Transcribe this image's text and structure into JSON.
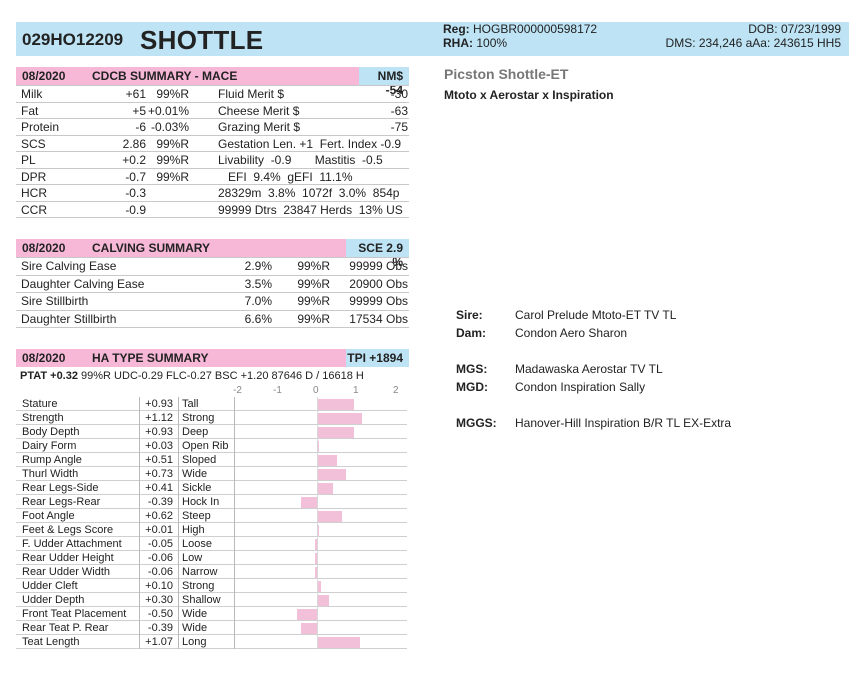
{
  "header": {
    "id": "029HO12209",
    "name": "SHOTTLE",
    "reg_label": "Reg:",
    "reg_value": "HOGBR000000598172",
    "rha_label": "RHA:",
    "rha_value": "100%",
    "dob": "DOB: 07/23/1999",
    "dms": "DMS: 234,246  aAa: 243615  HH5"
  },
  "cdcb": {
    "date": "08/2020",
    "title": "CDCB SUMMARY - MACE",
    "nm": "NM$ -54",
    "rows": [
      {
        "trait": "Milk",
        "v1": "+61",
        "v2": "99%R",
        "m": "Fluid Merit $",
        "mv": "-30"
      },
      {
        "trait": "Fat",
        "v1": "+5",
        "v2": "+0.01%",
        "m": "Cheese Merit $",
        "mv": "-63"
      },
      {
        "trait": "Protein",
        "v1": "-6",
        "v2": "-0.03%",
        "m": "Grazing Merit $",
        "mv": "-75"
      },
      {
        "trait": "SCS",
        "v1": "2.86",
        "v2": "99%R",
        "m": "Gestation Len. +1  Fert. Index -0.9",
        "mv": ""
      },
      {
        "trait": "PL",
        "v1": "+0.2",
        "v2": "99%R",
        "m": "Livability  -0.9       Mastitis  -0.5",
        "mv": ""
      },
      {
        "trait": "DPR",
        "v1": "-0.7",
        "v2": "99%R",
        "m": "   EFI  9.4%  gEFI  11.1%",
        "mv": ""
      },
      {
        "trait": "HCR",
        "v1": "-0.3",
        "v2": "",
        "m": "28329m  3.8%  1072f  3.0%  854p",
        "mv": ""
      },
      {
        "trait": "CCR",
        "v1": "-0.9",
        "v2": "",
        "m": "99999 Dtrs  23847 Herds  13% US",
        "mv": ""
      }
    ]
  },
  "calving": {
    "date": "08/2020",
    "title": "CALVING SUMMARY",
    "sce": "SCE 2.9 %",
    "rows": [
      {
        "trait": "Sire Calving Ease",
        "pct": "2.9%",
        "rel": "99%R",
        "obs": "99999 Obs"
      },
      {
        "trait": "Daughter Calving Ease",
        "pct": "3.5%",
        "rel": "99%R",
        "obs": "20900 Obs"
      },
      {
        "trait": "Sire Stillbirth",
        "pct": "7.0%",
        "rel": "99%R",
        "obs": "99999 Obs"
      },
      {
        "trait": "Daughter Stillbirth",
        "pct": "6.6%",
        "rel": "99%R",
        "obs": "17534 Obs"
      }
    ]
  },
  "type": {
    "date": "08/2020",
    "title": "HA TYPE SUMMARY",
    "tpi": "TPI +1894",
    "ptat_label": "PTAT +0.32",
    "ptat_rest": " 99%R  UDC-0.29  FLC-0.27  BSC +1.20  87646 D /  16618 H",
    "scale": [
      "-2",
      "-1",
      "0",
      "1",
      "2"
    ],
    "rows": [
      {
        "trait": "Stature",
        "value": "+0.93",
        "desc": "Tall",
        "n": 0.93
      },
      {
        "trait": "Strength",
        "value": "+1.12",
        "desc": "Strong",
        "n": 1.12
      },
      {
        "trait": "Body Depth",
        "value": "+0.93",
        "desc": "Deep",
        "n": 0.93
      },
      {
        "trait": "Dairy Form",
        "value": "+0.03",
        "desc": "Open Rib",
        "n": 0.03
      },
      {
        "trait": "Rump Angle",
        "value": "+0.51",
        "desc": "Sloped",
        "n": 0.51
      },
      {
        "trait": "Thurl Width",
        "value": "+0.73",
        "desc": "Wide",
        "n": 0.73
      },
      {
        "trait": "Rear Legs-Side",
        "value": "+0.41",
        "desc": "Sickle",
        "n": 0.41
      },
      {
        "trait": "Rear Legs-Rear",
        "value": "-0.39",
        "desc": "Hock In",
        "n": -0.39
      },
      {
        "trait": "Foot Angle",
        "value": "+0.62",
        "desc": "Steep",
        "n": 0.62
      },
      {
        "trait": "Feet & Legs Score",
        "value": "+0.01",
        "desc": "High",
        "n": 0.01
      },
      {
        "trait": "F. Udder Attachment",
        "value": "-0.05",
        "desc": "Loose",
        "n": -0.05
      },
      {
        "trait": "Rear Udder Height",
        "value": "-0.06",
        "desc": "Low",
        "n": -0.06
      },
      {
        "trait": "Rear Udder Width",
        "value": "-0.06",
        "desc": "Narrow",
        "n": -0.06
      },
      {
        "trait": "Udder Cleft",
        "value": "+0.10",
        "desc": "Strong",
        "n": 0.1
      },
      {
        "trait": "Udder Depth",
        "value": "+0.30",
        "desc": "Shallow",
        "n": 0.3
      },
      {
        "trait": "Front Teat Placement",
        "value": "-0.50",
        "desc": "Wide",
        "n": -0.5
      },
      {
        "trait": "Rear Teat P. Rear",
        "value": "-0.39",
        "desc": "Wide",
        "n": -0.39
      },
      {
        "trait": "Teat Length",
        "value": "+1.07",
        "desc": "Long",
        "n": 1.07
      }
    ]
  },
  "right": {
    "name": "Picston Shottle-ET",
    "pedigree": "Mtoto x Aerostar x Inspiration",
    "sire_label": "Sire:",
    "sire": "Carol Prelude Mtoto-ET TV TL",
    "dam_label": "Dam:",
    "dam": "Condon Aero Sharon",
    "mgs_label": "MGS:",
    "mgs": "Madawaska Aerostar TV TL",
    "mgd_label": "MGD:",
    "mgd": "Condon Inspiration Sally",
    "mggs_label": "MGGS:",
    "mggs": "Hanover-Hill Inspiration B/R TL EX-Extra"
  },
  "colors": {
    "pink": "#f7b8d8",
    "blue": "#bde3f4",
    "bar": "#f2c0d8"
  }
}
